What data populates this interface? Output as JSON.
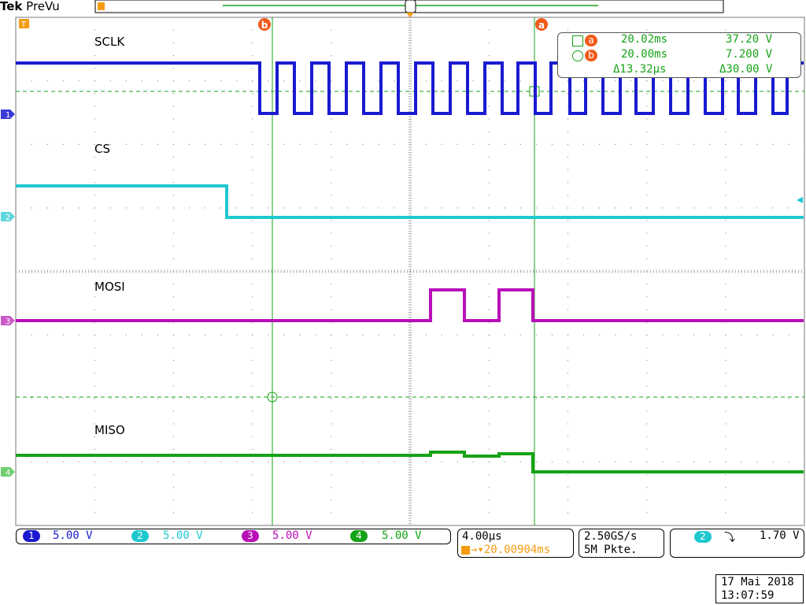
{
  "header": {
    "brand": "Tek",
    "mode": "PreVu",
    "trigger_marker": "T"
  },
  "cursors": {
    "a_marker": "a",
    "b_marker": "b"
  },
  "channels": [
    {
      "name": "SCLK",
      "number": "1",
      "scale": "5.00 V",
      "color": "#1a1ad0"
    },
    {
      "name": "CS",
      "number": "2",
      "scale": "5.00 V",
      "color": "#1fc8cf"
    },
    {
      "name": "MOSI",
      "number": "3",
      "scale": "5.00 V",
      "color": "#b80fb8"
    },
    {
      "name": "MISO",
      "number": "4",
      "scale": "5.00 V",
      "color": "#16a316"
    }
  ],
  "measurement": {
    "a_time": "20.02ms",
    "a_value": "37.20 V",
    "b_time": "20.00ms",
    "b_value": "7.200 V",
    "delta_time": "Δ13.32µs",
    "delta_value": "Δ30.00 V"
  },
  "timebase": {
    "scale": "4.00µs",
    "trigger_pos": "→▾20.00904ms"
  },
  "acquisition": {
    "rate": "2.50GS/s",
    "record": "5M Pkte."
  },
  "trigger": {
    "channel": "2",
    "slope_icon": "falling-edge-icon",
    "slope_glyph": "⤵",
    "level": "1.70 V"
  },
  "datetime": {
    "date": "17 Mai  2018",
    "time": "13:07:59"
  }
}
